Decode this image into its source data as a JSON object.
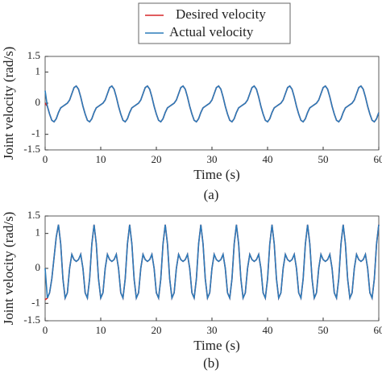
{
  "chart_data": [
    {
      "type": "line",
      "caption": "(a)",
      "xlabel": "Time (s)",
      "ylabel": "Joint velocity (rad/s)",
      "xlim": [
        0,
        60
      ],
      "xticks": [
        0,
        10,
        20,
        30,
        40,
        50,
        60
      ],
      "ylim": [
        -1.5,
        1.5
      ],
      "yticks": [
        -1.5,
        -1,
        0,
        1,
        1.5
      ],
      "x": [
        0,
        0.4,
        0.8,
        1.2,
        1.6,
        2,
        2.4,
        2.8,
        3.2,
        3.6,
        4,
        4.4,
        4.8,
        5.2,
        5.6,
        6,
        6.4,
        6.8,
        7.2,
        7.6,
        8,
        8.4,
        8.8,
        9.2,
        9.6,
        10,
        10.4,
        10.8,
        11.2,
        11.6,
        12,
        12.4,
        12.8,
        13.2,
        13.6,
        14,
        14.4,
        14.8,
        15.2,
        15.6,
        16,
        16.4,
        16.8,
        17.2,
        17.6,
        18,
        18.4,
        18.8,
        19.2,
        19.6,
        20,
        20.4,
        20.8,
        21.2,
        21.6,
        22,
        22.4,
        22.8,
        23.2,
        23.6,
        24,
        24.4,
        24.8,
        25.2,
        25.6,
        26,
        26.4,
        26.8,
        27.2,
        27.6,
        28,
        28.4,
        28.8,
        29.2,
        29.6,
        30,
        30.4,
        30.8,
        31.2,
        31.6,
        32,
        32.4,
        32.8,
        33.2,
        33.6,
        34,
        34.4,
        34.8,
        35.2,
        35.6,
        36,
        36.4,
        36.8,
        37.2,
        37.6,
        38,
        38.4,
        38.8,
        39.2,
        39.6,
        40,
        40.4,
        40.8,
        41.2,
        41.6,
        42,
        42.4,
        42.8,
        43.2,
        43.6,
        44,
        44.4,
        44.8,
        45.2,
        45.6,
        46,
        46.4,
        46.8,
        47.2,
        47.6,
        48,
        48.4,
        48.8,
        49.2,
        49.6,
        50,
        50.4,
        50.8,
        51.2,
        51.6,
        52,
        52.4,
        52.8,
        53.2,
        53.6,
        54,
        54.4,
        54.8,
        55.2,
        55.6,
        56,
        56.4,
        56.8,
        57.2,
        57.6,
        58,
        58.4,
        58.8,
        59.2,
        59.6,
        60
      ],
      "series": [
        {
          "name": "Desired velocity",
          "color": "#d62728",
          "values": [
            0,
            -0.1,
            -0.35,
            -0.55,
            -0.6,
            -0.5,
            -0.3,
            -0.15,
            -0.1,
            -0.05,
            0,
            0.1,
            0.3,
            0.5,
            0.55,
            0.45,
            0.2,
            -0.1,
            -0.35,
            -0.55,
            -0.6,
            -0.5,
            -0.3,
            -0.15,
            -0.1,
            -0.05,
            0,
            0.1,
            0.3,
            0.5,
            0.55,
            0.45,
            0.2,
            -0.1,
            -0.35,
            -0.55,
            -0.6,
            -0.5,
            -0.3,
            -0.15,
            -0.1,
            -0.05,
            0,
            0.1,
            0.3,
            0.5,
            0.55,
            0.45,
            0.2,
            -0.1,
            -0.35,
            -0.55,
            -0.6,
            -0.5,
            -0.3,
            -0.15,
            -0.1,
            -0.05,
            0,
            0.1,
            0.3,
            0.5,
            0.55,
            0.45,
            0.2,
            -0.1,
            -0.35,
            -0.55,
            -0.6,
            -0.5,
            -0.3,
            -0.15,
            -0.1,
            -0.05,
            0,
            0.1,
            0.3,
            0.5,
            0.55,
            0.45,
            0.2,
            -0.1,
            -0.35,
            -0.55,
            -0.6,
            -0.5,
            -0.3,
            -0.15,
            -0.1,
            -0.05,
            0,
            0.1,
            0.3,
            0.5,
            0.55,
            0.45,
            0.2,
            -0.1,
            -0.35,
            -0.55,
            -0.6,
            -0.5,
            -0.3,
            -0.15,
            -0.1,
            -0.05,
            0,
            0.1,
            0.3,
            0.5,
            0.55,
            0.45,
            0.2,
            -0.1,
            -0.35,
            -0.55,
            -0.6,
            -0.5,
            -0.3,
            -0.15,
            -0.1,
            -0.05,
            0,
            0.1,
            0.3,
            0.5,
            0.55,
            0.45,
            0.2,
            -0.1,
            -0.35,
            -0.55,
            -0.6,
            -0.5,
            -0.3,
            -0.15,
            -0.1,
            -0.05,
            0,
            0.1,
            0.3,
            0.5,
            0.55,
            0.45,
            0.2,
            -0.1,
            -0.35,
            -0.55,
            -0.6,
            -0.5,
            -0.3
          ]
        },
        {
          "name": "Actual velocity",
          "color": "#2b7bba",
          "values": [
            0.4,
            -0.1,
            -0.35,
            -0.55,
            -0.6,
            -0.5,
            -0.3,
            -0.15,
            -0.1,
            -0.05,
            0,
            0.1,
            0.3,
            0.5,
            0.55,
            0.45,
            0.2,
            -0.1,
            -0.35,
            -0.55,
            -0.6,
            -0.5,
            -0.3,
            -0.15,
            -0.1,
            -0.05,
            0,
            0.1,
            0.3,
            0.5,
            0.55,
            0.45,
            0.2,
            -0.1,
            -0.35,
            -0.55,
            -0.6,
            -0.5,
            -0.3,
            -0.15,
            -0.1,
            -0.05,
            0,
            0.1,
            0.3,
            0.5,
            0.55,
            0.45,
            0.2,
            -0.1,
            -0.35,
            -0.55,
            -0.6,
            -0.5,
            -0.3,
            -0.15,
            -0.1,
            -0.05,
            0,
            0.1,
            0.3,
            0.5,
            0.55,
            0.45,
            0.2,
            -0.1,
            -0.35,
            -0.55,
            -0.6,
            -0.5,
            -0.3,
            -0.15,
            -0.1,
            -0.05,
            0,
            0.1,
            0.3,
            0.5,
            0.55,
            0.45,
            0.2,
            -0.1,
            -0.35,
            -0.55,
            -0.6,
            -0.5,
            -0.3,
            -0.15,
            -0.1,
            -0.05,
            0,
            0.1,
            0.3,
            0.5,
            0.55,
            0.45,
            0.2,
            -0.1,
            -0.35,
            -0.55,
            -0.6,
            -0.5,
            -0.3,
            -0.15,
            -0.1,
            -0.05,
            0,
            0.1,
            0.3,
            0.5,
            0.55,
            0.45,
            0.2,
            -0.1,
            -0.35,
            -0.55,
            -0.6,
            -0.5,
            -0.3,
            -0.15,
            -0.1,
            -0.05,
            0,
            0.1,
            0.3,
            0.5,
            0.55,
            0.45,
            0.2,
            -0.1,
            -0.35,
            -0.55,
            -0.6,
            -0.5,
            -0.3,
            -0.15,
            -0.1,
            -0.05,
            0,
            0.1,
            0.3,
            0.5,
            0.55,
            0.45,
            0.2,
            -0.1,
            -0.35,
            -0.55,
            -0.6,
            -0.5,
            -0.3
          ]
        }
      ]
    },
    {
      "type": "line",
      "caption": "(b)",
      "xlabel": "Time (s)",
      "ylabel": "Joint velocity (rad/s)",
      "xlim": [
        0,
        60
      ],
      "xticks": [
        0,
        10,
        20,
        30,
        40,
        50,
        60
      ],
      "ylim": [
        -1.5,
        1.5
      ],
      "yticks": [
        -1.5,
        -1,
        0,
        1,
        1.5
      ],
      "x": [
        0,
        0.4,
        0.8,
        1.2,
        1.6,
        2,
        2.4,
        2.8,
        3.2,
        3.6,
        4,
        4.4,
        4.8,
        5.2,
        5.6,
        6,
        6.4,
        6.8,
        7.2,
        7.6,
        8,
        8.4,
        8.8,
        9.2,
        9.6,
        10,
        10.4,
        10.8,
        11.2,
        11.6,
        12,
        12.4,
        12.8,
        13.2,
        13.6,
        14,
        14.4,
        14.8,
        15.2,
        15.6,
        16,
        16.4,
        16.8,
        17.2,
        17.6,
        18,
        18.4,
        18.8,
        19.2,
        19.6,
        20,
        20.4,
        20.8,
        21.2,
        21.6,
        22,
        22.4,
        22.8,
        23.2,
        23.6,
        24,
        24.4,
        24.8,
        25.2,
        25.6,
        26,
        26.4,
        26.8,
        27.2,
        27.6,
        28,
        28.4,
        28.8,
        29.2,
        29.6,
        30,
        30.4,
        30.8,
        31.2,
        31.6,
        32,
        32.4,
        32.8,
        33.2,
        33.6,
        34,
        34.4,
        34.8,
        35.2,
        35.6,
        36,
        36.4,
        36.8,
        37.2,
        37.6,
        38,
        38.4,
        38.8,
        39.2,
        39.6,
        40,
        40.4,
        40.8,
        41.2,
        41.6,
        42,
        42.4,
        42.8,
        43.2,
        43.6,
        44,
        44.4,
        44.8,
        45.2,
        45.6,
        46,
        46.4,
        46.8,
        47.2,
        47.6,
        48,
        48.4,
        48.8,
        49.2,
        49.6,
        50,
        50.4,
        50.8,
        51.2,
        51.6,
        52,
        52.4,
        52.8,
        53.2,
        53.6,
        54,
        54.4,
        54.8,
        55.2,
        55.6,
        56,
        56.4,
        56.8,
        57.2,
        57.6,
        58,
        58.4,
        58.8,
        59.2,
        59.6,
        60
      ],
      "series": [
        {
          "color": "#d62728",
          "values": [
            -0.9,
            -0.85,
            -0.7,
            -0.3,
            0.3,
            0.9,
            1.25,
            0.7,
            -0.3,
            -0.85,
            -0.7,
            0,
            0.4,
            0.25,
            0.2,
            0.25,
            0.4,
            0,
            -0.7,
            -0.85,
            -0.3,
            0.7,
            1.25,
            0.7,
            -0.3,
            -0.85,
            -0.7,
            0,
            0.4,
            0.25,
            0.2,
            0.25,
            0.4,
            0,
            -0.7,
            -0.85,
            -0.3,
            0.7,
            1.25,
            0.7,
            -0.3,
            -0.85,
            -0.7,
            0,
            0.4,
            0.25,
            0.2,
            0.25,
            0.4,
            0,
            -0.7,
            -0.85,
            -0.3,
            0.7,
            1.25,
            0.7,
            -0.3,
            -0.85,
            -0.7,
            0,
            0.4,
            0.25,
            0.2,
            0.25,
            0.4,
            0,
            -0.7,
            -0.85,
            -0.3,
            0.7,
            1.25,
            0.7,
            -0.3,
            -0.85,
            -0.7,
            0,
            0.4,
            0.25,
            0.2,
            0.25,
            0.4,
            0,
            -0.7,
            -0.85,
            -0.3,
            0.7,
            1.25,
            0.7,
            -0.3,
            -0.85,
            -0.7,
            0,
            0.4,
            0.25,
            0.2,
            0.25,
            0.4,
            0,
            -0.7,
            -0.85,
            -0.3,
            0.7,
            1.25,
            0.7,
            -0.3,
            -0.85,
            -0.7,
            0,
            0.4,
            0.25,
            0.2,
            0.25,
            0.4,
            0,
            -0.7,
            -0.85,
            -0.3,
            0.7,
            1.25,
            0.7,
            -0.3,
            -0.85,
            -0.7,
            0,
            0.4,
            0.25,
            0.2,
            0.25,
            0.4,
            0,
            -0.7,
            -0.85,
            -0.3,
            0.7,
            1.25,
            0.7,
            -0.3,
            -0.85,
            -0.7,
            0,
            0.4,
            0.25,
            0.2,
            0.25,
            0.4,
            0,
            -0.7,
            -0.85,
            -0.3,
            0.7,
            1.25
          ]
        },
        {
          "color": "#2b7bba",
          "values": [
            0,
            -0.85,
            -0.7,
            -0.3,
            0.3,
            0.9,
            1.25,
            0.7,
            -0.3,
            -0.85,
            -0.7,
            0,
            0.4,
            0.25,
            0.2,
            0.25,
            0.4,
            0,
            -0.7,
            -0.85,
            -0.3,
            0.7,
            1.25,
            0.7,
            -0.3,
            -0.85,
            -0.7,
            0,
            0.4,
            0.25,
            0.2,
            0.25,
            0.4,
            0,
            -0.7,
            -0.85,
            -0.3,
            0.7,
            1.25,
            0.7,
            -0.3,
            -0.85,
            -0.7,
            0,
            0.4,
            0.25,
            0.2,
            0.25,
            0.4,
            0,
            -0.7,
            -0.85,
            -0.3,
            0.7,
            1.25,
            0.7,
            -0.3,
            -0.85,
            -0.7,
            0,
            0.4,
            0.25,
            0.2,
            0.25,
            0.4,
            0,
            -0.7,
            -0.85,
            -0.3,
            0.7,
            1.25,
            0.7,
            -0.3,
            -0.85,
            -0.7,
            0,
            0.4,
            0.25,
            0.2,
            0.25,
            0.4,
            0,
            -0.7,
            -0.85,
            -0.3,
            0.7,
            1.25,
            0.7,
            -0.3,
            -0.85,
            -0.7,
            0,
            0.4,
            0.25,
            0.2,
            0.25,
            0.4,
            0,
            -0.7,
            -0.85,
            -0.3,
            0.7,
            1.25,
            0.7,
            -0.3,
            -0.85,
            -0.7,
            0,
            0.4,
            0.25,
            0.2,
            0.25,
            0.4,
            0,
            -0.7,
            -0.85,
            -0.3,
            0.7,
            1.25,
            0.7,
            -0.3,
            -0.85,
            -0.7,
            0,
            0.4,
            0.25,
            0.2,
            0.25,
            0.4,
            0,
            -0.7,
            -0.85,
            -0.3,
            0.7,
            1.25,
            0.7,
            -0.3,
            -0.85,
            -0.7,
            0,
            0.4,
            0.25,
            0.2,
            0.25,
            0.4,
            0,
            -0.7,
            -0.85,
            -0.3,
            0.7,
            1.25
          ]
        }
      ]
    }
  ]
}
